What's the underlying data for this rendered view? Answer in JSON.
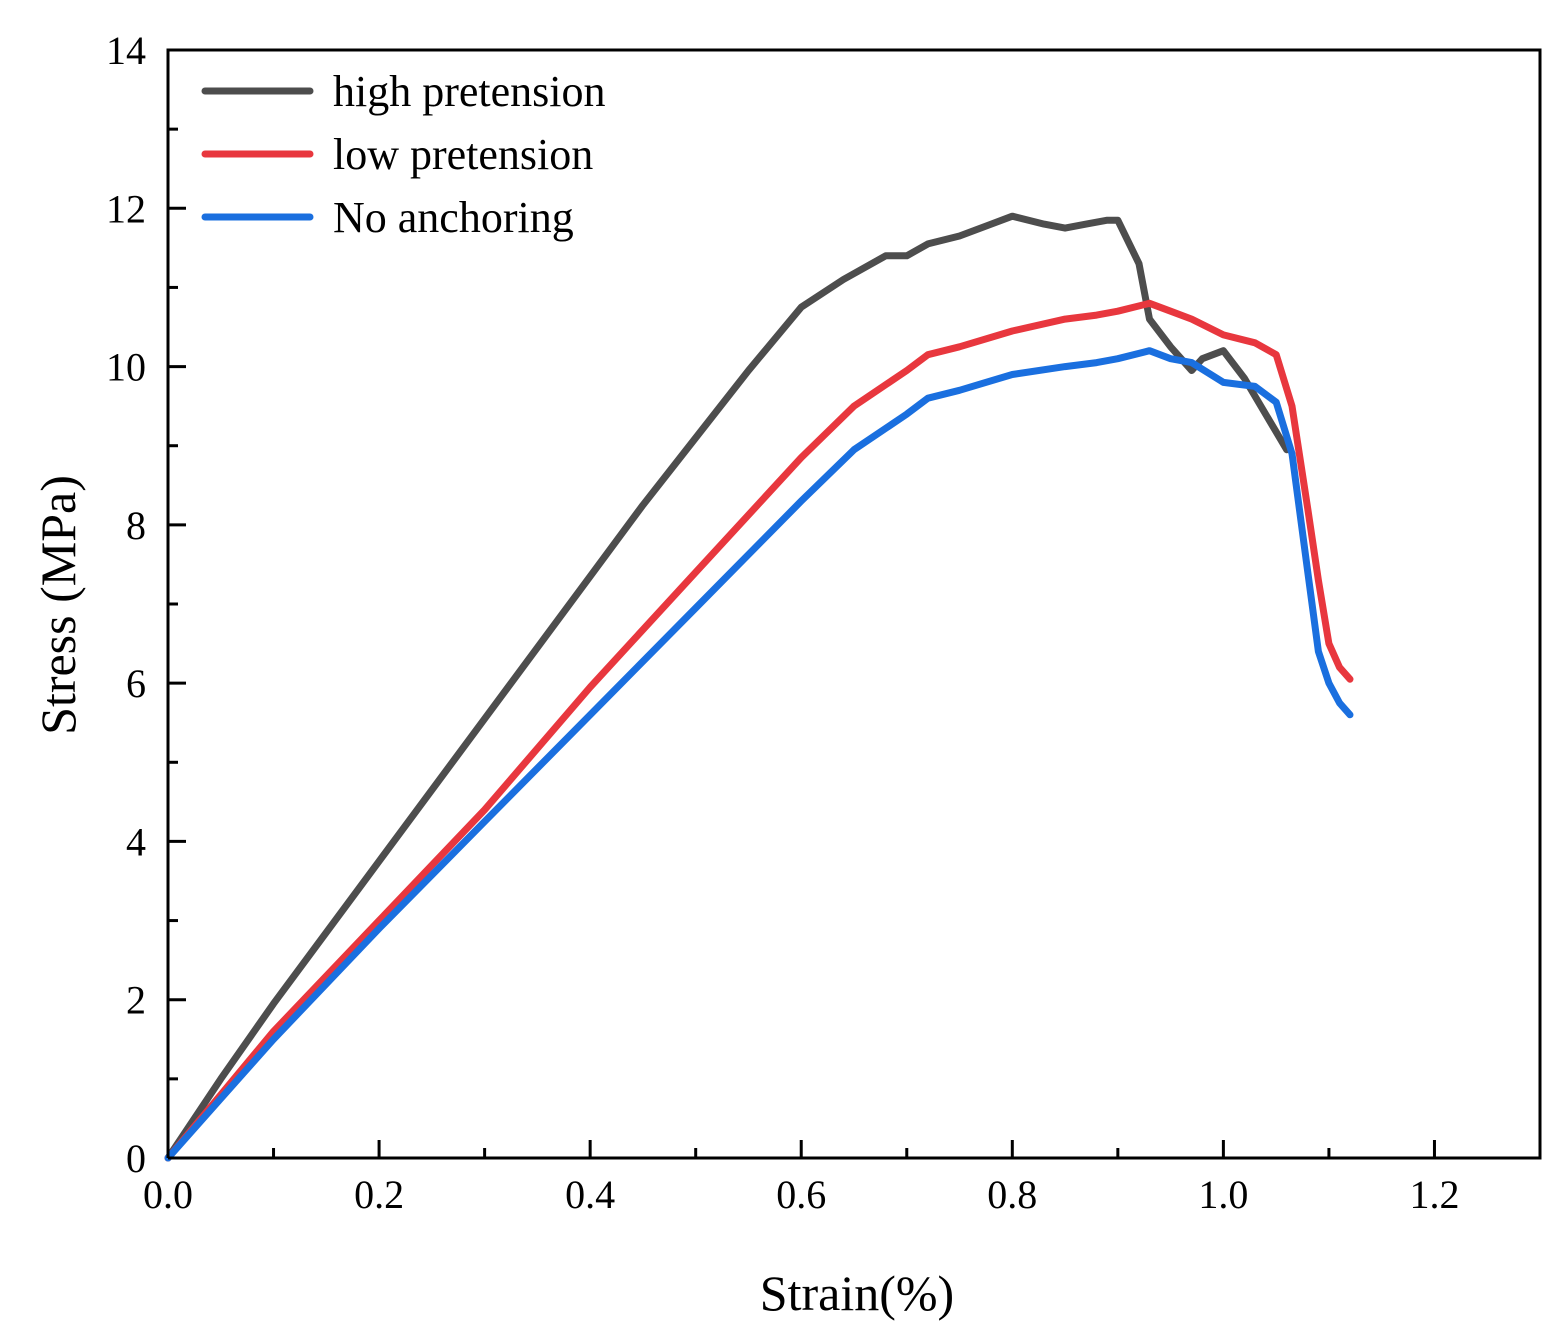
{
  "chart_data": {
    "type": "line",
    "title": "",
    "xlabel": "Strain(%)",
    "ylabel": "Stress (MPa)",
    "xlim": [
      0,
      1.3
    ],
    "ylim": [
      0,
      14
    ],
    "xticks": [
      0.0,
      0.2,
      0.4,
      0.6,
      0.8,
      1.0,
      1.2
    ],
    "xtick_labels": [
      "0.0",
      "0.2",
      "0.4",
      "0.6",
      "0.8",
      "1.0",
      "1.2"
    ],
    "yticks": [
      0,
      2,
      4,
      6,
      8,
      10,
      12,
      14
    ],
    "ytick_labels": [
      "0",
      "2",
      "4",
      "6",
      "8",
      "10",
      "12",
      "14"
    ],
    "grid": false,
    "legend_position": "top-left",
    "series": [
      {
        "name": "high pretension",
        "color": "#4d4d4d",
        "x": [
          0,
          0.05,
          0.1,
          0.2,
          0.3,
          0.4,
          0.45,
          0.5,
          0.55,
          0.6,
          0.64,
          0.68,
          0.7,
          0.72,
          0.75,
          0.78,
          0.8,
          0.83,
          0.85,
          0.87,
          0.89,
          0.9,
          0.92,
          0.93,
          0.95,
          0.97,
          0.98,
          1.0,
          1.02,
          1.04,
          1.06
        ],
        "y": [
          0,
          1.0,
          1.95,
          3.75,
          5.55,
          7.35,
          8.25,
          9.1,
          9.95,
          10.75,
          11.1,
          11.4,
          11.4,
          11.55,
          11.65,
          11.8,
          11.9,
          11.8,
          11.75,
          11.8,
          11.85,
          11.85,
          11.3,
          10.6,
          10.25,
          9.95,
          10.1,
          10.2,
          9.85,
          9.4,
          8.95
        ]
      },
      {
        "name": "low pretension",
        "color": "#e8373e",
        "x": [
          0,
          0.05,
          0.1,
          0.2,
          0.3,
          0.4,
          0.5,
          0.6,
          0.65,
          0.7,
          0.72,
          0.75,
          0.8,
          0.85,
          0.88,
          0.9,
          0.93,
          0.95,
          0.97,
          1.0,
          1.03,
          1.05,
          1.065,
          1.08,
          1.09,
          1.1,
          1.11,
          1.12
        ],
        "y": [
          0,
          0.8,
          1.6,
          3.0,
          4.4,
          5.95,
          7.4,
          8.85,
          9.5,
          9.95,
          10.15,
          10.25,
          10.45,
          10.6,
          10.65,
          10.7,
          10.8,
          10.7,
          10.6,
          10.4,
          10.3,
          10.15,
          9.5,
          8.2,
          7.3,
          6.5,
          6.2,
          6.05
        ]
      },
      {
        "name": "No anchoring",
        "color": "#1a6fdf",
        "x": [
          0,
          0.05,
          0.1,
          0.2,
          0.3,
          0.4,
          0.5,
          0.6,
          0.65,
          0.7,
          0.72,
          0.75,
          0.8,
          0.85,
          0.88,
          0.9,
          0.93,
          0.95,
          0.97,
          1.0,
          1.03,
          1.05,
          1.065,
          1.08,
          1.09,
          1.1,
          1.11,
          1.12
        ],
        "y": [
          0,
          0.75,
          1.5,
          2.9,
          4.25,
          5.6,
          6.95,
          8.3,
          8.95,
          9.4,
          9.6,
          9.7,
          9.9,
          10.0,
          10.05,
          10.1,
          10.2,
          10.1,
          10.05,
          9.8,
          9.75,
          9.55,
          8.9,
          7.4,
          6.4,
          6.0,
          5.75,
          5.6
        ]
      }
    ]
  }
}
